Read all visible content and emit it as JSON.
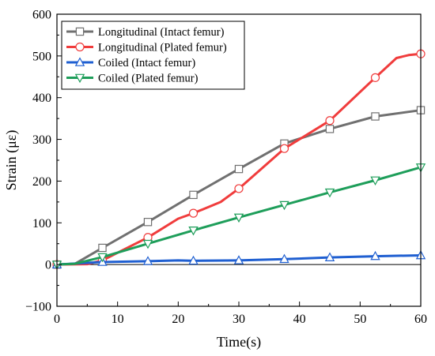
{
  "chart_data": {
    "type": "line",
    "title": "",
    "xlabel": "Time(s)",
    "ylabel": "Strain (με)",
    "xlim": [
      0,
      60
    ],
    "ylim": [
      -100,
      600
    ],
    "xticks": [
      0,
      10,
      20,
      30,
      40,
      50,
      60
    ],
    "yticks": [
      -100,
      0,
      100,
      200,
      300,
      400,
      500,
      600
    ],
    "grid": false,
    "legend_position": "top-left",
    "series": [
      {
        "name": "Longitudinal (Intact femur)",
        "color": "#707070",
        "marker": "square",
        "x": [
          0,
          3,
          7.5,
          15,
          22.5,
          30,
          37.5,
          45,
          52.5,
          60
        ],
        "y": [
          0,
          2,
          40,
          102,
          167,
          229,
          290,
          325,
          355,
          370
        ],
        "marker_x": [
          0,
          7.5,
          15,
          22.5,
          30,
          37.5,
          45,
          52.5,
          60
        ],
        "marker_y": [
          0,
          40,
          102,
          167,
          229,
          290,
          325,
          355,
          370
        ]
      },
      {
        "name": "Longitudinal (Plated femur)",
        "color": "#f03c3c",
        "marker": "circle",
        "x": [
          0,
          5,
          7.5,
          15,
          20,
          22.5,
          27,
          30,
          37.5,
          45,
          52.5,
          56,
          58,
          60
        ],
        "y": [
          0,
          1,
          10,
          65,
          110,
          123,
          150,
          182,
          278,
          345,
          448,
          495,
          502,
          505
        ],
        "marker_x": [
          0,
          7.5,
          15,
          22.5,
          30,
          37.5,
          45,
          52.5,
          60
        ],
        "marker_y": [
          0,
          10,
          65,
          123,
          182,
          278,
          345,
          448,
          505
        ]
      },
      {
        "name": "Coiled (Intact femur)",
        "color": "#1f5fd1",
        "marker": "triangle-up",
        "x": [
          0,
          7.5,
          15,
          20,
          22.5,
          30,
          37.5,
          45,
          52.5,
          60
        ],
        "y": [
          0,
          6,
          8,
          10,
          9,
          10,
          13,
          17,
          20,
          22
        ],
        "marker_x": [
          0,
          7.5,
          15,
          22.5,
          30,
          37.5,
          45,
          52.5,
          60
        ],
        "marker_y": [
          0,
          6,
          8,
          9,
          10,
          13,
          17,
          20,
          22
        ]
      },
      {
        "name": "Coiled (Plated femur)",
        "color": "#1e9e5a",
        "marker": "triangle-down",
        "x": [
          0,
          3,
          7.5,
          15,
          22.5,
          30,
          37.5,
          45,
          52.5,
          60
        ],
        "y": [
          0,
          2,
          18,
          50,
          82,
          113,
          143,
          173,
          202,
          233
        ],
        "marker_x": [
          0,
          7.5,
          15,
          22.5,
          30,
          37.5,
          45,
          52.5,
          60
        ],
        "marker_y": [
          0,
          18,
          50,
          82,
          113,
          143,
          173,
          202,
          233
        ]
      }
    ]
  }
}
